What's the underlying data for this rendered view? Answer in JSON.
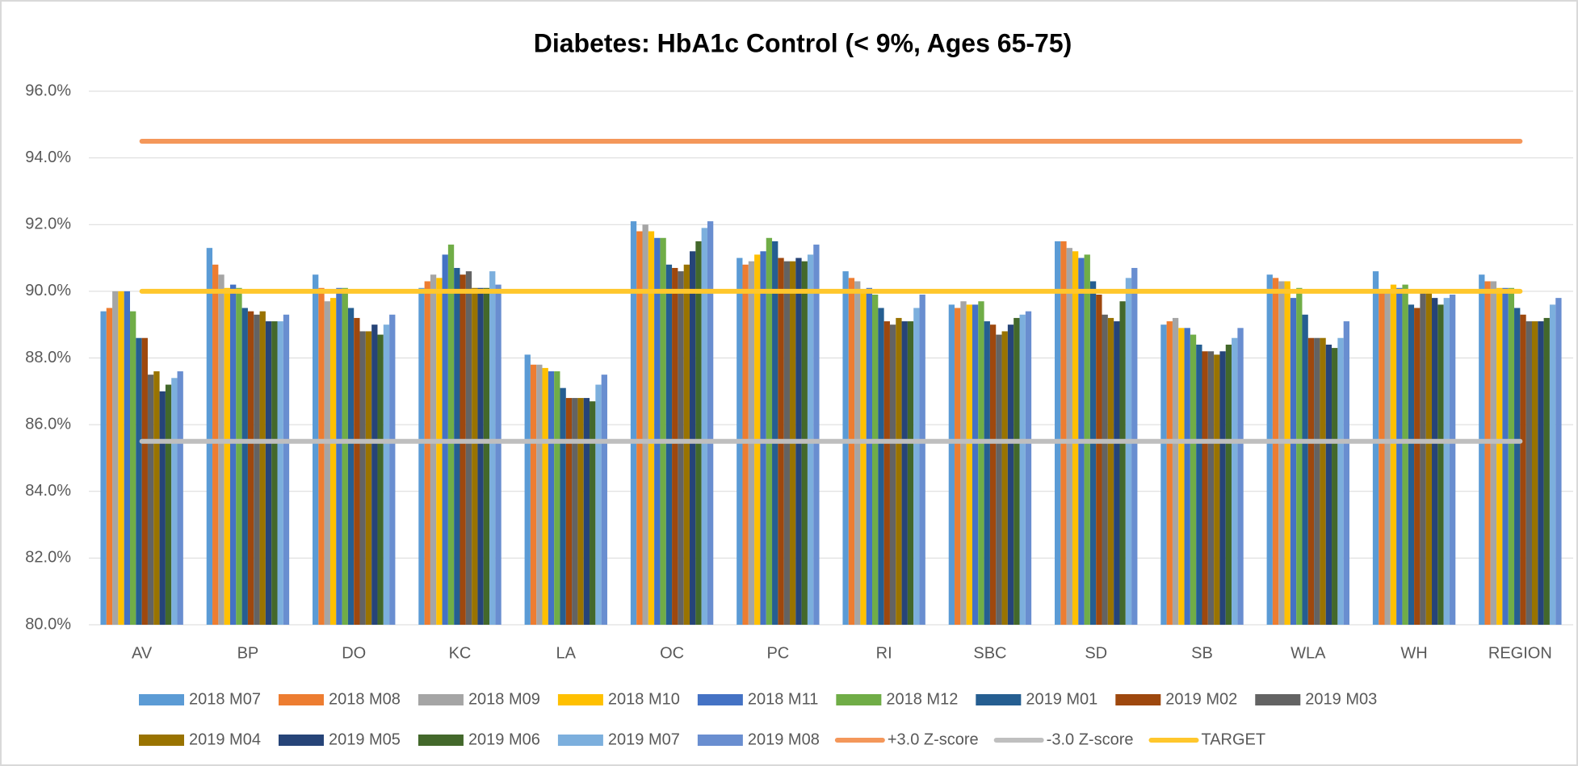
{
  "chart_data": {
    "type": "bar",
    "title": "Diabetes: HbA1c Control (< 9%, Ages 65-75)",
    "categories": [
      "AV",
      "BP",
      "DO",
      "KC",
      "LA",
      "OC",
      "PC",
      "RI",
      "SBC",
      "SD",
      "SB",
      "WLA",
      "WH",
      "REGION"
    ],
    "ylim": [
      80,
      96
    ],
    "yticks": [
      {
        "value": 80,
        "label": "80.0%"
      },
      {
        "value": 82,
        "label": "82.0%"
      },
      {
        "value": 84,
        "label": "84.0%"
      },
      {
        "value": 86,
        "label": "86.0%"
      },
      {
        "value": 88,
        "label": "88.0%"
      },
      {
        "value": 90,
        "label": "90.0%"
      },
      {
        "value": 92,
        "label": "92.0%"
      },
      {
        "value": 94,
        "label": "94.0%"
      },
      {
        "value": 96,
        "label": "96.0%"
      }
    ],
    "grid": true,
    "legend": "bottom",
    "series": [
      {
        "name": "2018 M07",
        "color": "#5b9bd5",
        "values": [
          89.4,
          91.3,
          90.5,
          90.1,
          88.1,
          92.1,
          91.0,
          90.6,
          89.6,
          91.5,
          89.0,
          90.5,
          90.6,
          90.5
        ]
      },
      {
        "name": "2018 M08",
        "color": "#ed7d31",
        "values": [
          89.5,
          90.8,
          90.1,
          90.3,
          87.8,
          91.8,
          90.8,
          90.4,
          89.5,
          91.5,
          89.1,
          90.4,
          90.0,
          90.3
        ]
      },
      {
        "name": "2018 M09",
        "color": "#a5a5a5",
        "values": [
          90.0,
          90.5,
          89.7,
          90.5,
          87.8,
          92.0,
          90.9,
          90.3,
          89.7,
          91.3,
          89.2,
          90.3,
          90.0,
          90.3
        ]
      },
      {
        "name": "2018 M10",
        "color": "#ffc000",
        "values": [
          90.0,
          90.1,
          89.8,
          90.4,
          87.7,
          91.8,
          91.1,
          90.0,
          89.6,
          91.2,
          88.9,
          90.3,
          90.2,
          90.1
        ]
      },
      {
        "name": "2018 M11",
        "color": "#4472c4",
        "values": [
          90.0,
          90.2,
          90.1,
          91.1,
          87.6,
          91.6,
          91.2,
          90.1,
          89.6,
          91.0,
          88.9,
          89.8,
          90.1,
          90.1
        ]
      },
      {
        "name": "2018 M12",
        "color": "#70ad47",
        "values": [
          89.4,
          90.1,
          90.1,
          91.4,
          87.6,
          91.6,
          91.6,
          89.9,
          89.7,
          91.1,
          88.7,
          90.1,
          90.2,
          90.1
        ]
      },
      {
        "name": "2019 M01",
        "color": "#255e91",
        "values": [
          88.6,
          89.5,
          89.5,
          90.7,
          87.1,
          90.8,
          91.5,
          89.5,
          89.1,
          90.3,
          88.4,
          89.3,
          89.6,
          89.5
        ]
      },
      {
        "name": "2019 M02",
        "color": "#9e480e",
        "values": [
          88.6,
          89.4,
          89.2,
          90.5,
          86.8,
          90.7,
          91.0,
          89.1,
          89.0,
          89.9,
          88.2,
          88.6,
          89.5,
          89.3
        ]
      },
      {
        "name": "2019 M03",
        "color": "#636363",
        "values": [
          87.5,
          89.3,
          88.8,
          90.6,
          86.8,
          90.6,
          90.9,
          89.0,
          88.7,
          89.3,
          88.2,
          88.6,
          90.0,
          89.1
        ]
      },
      {
        "name": "2019 M04",
        "color": "#997300",
        "values": [
          87.6,
          89.4,
          88.8,
          90.1,
          86.8,
          90.8,
          90.9,
          89.2,
          88.8,
          89.2,
          88.1,
          88.6,
          90.0,
          89.1
        ]
      },
      {
        "name": "2019 M05",
        "color": "#264478",
        "values": [
          87.0,
          89.1,
          89.0,
          90.1,
          86.8,
          91.2,
          91.0,
          89.1,
          89.0,
          89.1,
          88.2,
          88.4,
          89.8,
          89.1
        ]
      },
      {
        "name": "2019 M06",
        "color": "#43682b",
        "values": [
          87.2,
          89.1,
          88.7,
          90.1,
          86.7,
          91.5,
          90.9,
          89.1,
          89.2,
          89.7,
          88.4,
          88.3,
          89.6,
          89.2
        ]
      },
      {
        "name": "2019 M07",
        "color": "#7cafdd",
        "values": [
          87.4,
          89.1,
          89.0,
          90.6,
          87.2,
          91.9,
          91.1,
          89.5,
          89.3,
          90.4,
          88.6,
          88.6,
          89.8,
          89.6
        ]
      },
      {
        "name": "2019 M08",
        "color": "#698ed0",
        "values": [
          87.6,
          89.3,
          89.3,
          90.2,
          87.5,
          92.1,
          91.4,
          89.9,
          89.4,
          90.7,
          88.9,
          89.1,
          89.9,
          89.8
        ]
      },
      {
        "name": "+3.0 Z-score",
        "type": "line",
        "color": "#f4975a",
        "values": [
          94.5,
          94.5,
          94.5,
          94.5,
          94.5,
          94.5,
          94.5,
          94.5,
          94.5,
          94.5,
          94.5,
          94.5,
          94.5,
          94.5
        ]
      },
      {
        "name": "-3.0 Z-score",
        "type": "line",
        "color": "#bfbfbf",
        "values": [
          85.5,
          85.5,
          85.5,
          85.5,
          85.5,
          85.5,
          85.5,
          85.5,
          85.5,
          85.5,
          85.5,
          85.5,
          85.5,
          85.5
        ]
      },
      {
        "name": "TARGET",
        "type": "line",
        "color": "#ffc72c",
        "values": [
          90,
          90,
          90,
          90,
          90,
          90,
          90,
          90,
          90,
          90,
          90,
          90,
          90,
          90
        ]
      }
    ]
  }
}
